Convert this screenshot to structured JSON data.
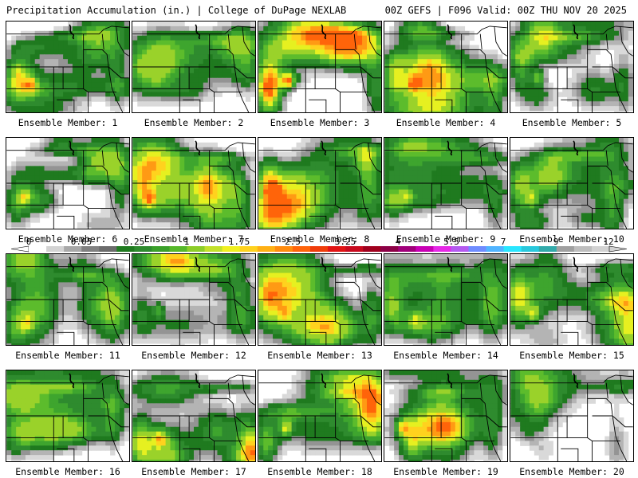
{
  "header": {
    "title_left": "Precipitation Accumulation (in.) | College of DuPage NEXLAB",
    "title_right": "00Z GEFS | F096 Valid: 00Z THU NOV 20 2025"
  },
  "panel_label_prefix": "Ensemble Member: ",
  "members": [
    {
      "id": 1,
      "label": "Ensemble Member: 1",
      "seed": 11,
      "intensity": 0.8,
      "coverage": 0.55
    },
    {
      "id": 2,
      "label": "Ensemble Member: 2",
      "seed": 23,
      "intensity": 0.35,
      "coverage": 0.45
    },
    {
      "id": 3,
      "label": "Ensemble Member: 3",
      "seed": 37,
      "intensity": 1.0,
      "coverage": 0.7
    },
    {
      "id": 4,
      "label": "Ensemble Member: 4",
      "seed": 41,
      "intensity": 0.85,
      "coverage": 0.6
    },
    {
      "id": 5,
      "label": "Ensemble Member: 5",
      "seed": 53,
      "intensity": 0.95,
      "coverage": 0.55
    },
    {
      "id": 6,
      "label": "Ensemble Member: 6",
      "seed": 67,
      "intensity": 0.75,
      "coverage": 0.6
    },
    {
      "id": 7,
      "label": "Ensemble Member: 7",
      "seed": 71,
      "intensity": 0.7,
      "coverage": 0.65
    },
    {
      "id": 8,
      "label": "Ensemble Member: 8",
      "seed": 83,
      "intensity": 1.0,
      "coverage": 0.6
    },
    {
      "id": 9,
      "label": "Ensemble Member: 9",
      "seed": 97,
      "intensity": 0.65,
      "coverage": 0.5
    },
    {
      "id": 10,
      "label": "Ensemble Member: 10",
      "seed": 101,
      "intensity": 0.75,
      "coverage": 0.6
    },
    {
      "id": 11,
      "label": "Ensemble Member: 11",
      "seed": 113,
      "intensity": 0.7,
      "coverage": 0.55
    },
    {
      "id": 12,
      "label": "Ensemble Member: 12",
      "seed": 127,
      "intensity": 0.6,
      "coverage": 0.55
    },
    {
      "id": 13,
      "label": "Ensemble Member: 13",
      "seed": 131,
      "intensity": 0.5,
      "coverage": 0.7
    },
    {
      "id": 14,
      "label": "Ensemble Member: 14",
      "seed": 149,
      "intensity": 0.7,
      "coverage": 0.55
    },
    {
      "id": 15,
      "label": "Ensemble Member: 15",
      "seed": 151,
      "intensity": 0.9,
      "coverage": 0.55
    },
    {
      "id": 16,
      "label": "Ensemble Member: 16",
      "seed": 163,
      "intensity": 0.45,
      "coverage": 0.6
    },
    {
      "id": 17,
      "label": "Ensemble Member: 17",
      "seed": 173,
      "intensity": 0.8,
      "coverage": 0.65
    },
    {
      "id": 18,
      "label": "Ensemble Member: 18",
      "seed": 181,
      "intensity": 0.9,
      "coverage": 0.65
    },
    {
      "id": 19,
      "label": "Ensemble Member: 19",
      "seed": 191,
      "intensity": 0.85,
      "coverage": 0.6
    },
    {
      "id": 20,
      "label": "Ensemble Member: 20",
      "seed": 199,
      "intensity": 0.4,
      "coverage": 0.4
    }
  ],
  "colorbar": {
    "labels": [
      "0",
      "0.05",
      "0.25",
      "1",
      "1.75",
      "2.5",
      "3.25",
      "4",
      "5.5",
      "7",
      "9",
      "12"
    ],
    "colors": [
      "#ffffff",
      "#d3d3d3",
      "#a8a8a8",
      "#808080",
      "#6b6b6b",
      "#1f7a1f",
      "#2e8b2e",
      "#3aa02a",
      "#55b82a",
      "#8ccd28",
      "#c2e02a",
      "#f0f020",
      "#ffd21e",
      "#ffb014",
      "#ff8c0f",
      "#ff640a",
      "#f03c0a",
      "#e11414",
      "#c80a1e",
      "#a0001e",
      "#8c0046",
      "#a0007a",
      "#c800b4",
      "#e628e6",
      "#b45af0",
      "#6e8cff",
      "#50b4ff",
      "#28e6ff",
      "#28c8dc",
      "#32aaaa",
      "#a0a0a0",
      "#bebebe",
      "#d2d2d2"
    ]
  }
}
